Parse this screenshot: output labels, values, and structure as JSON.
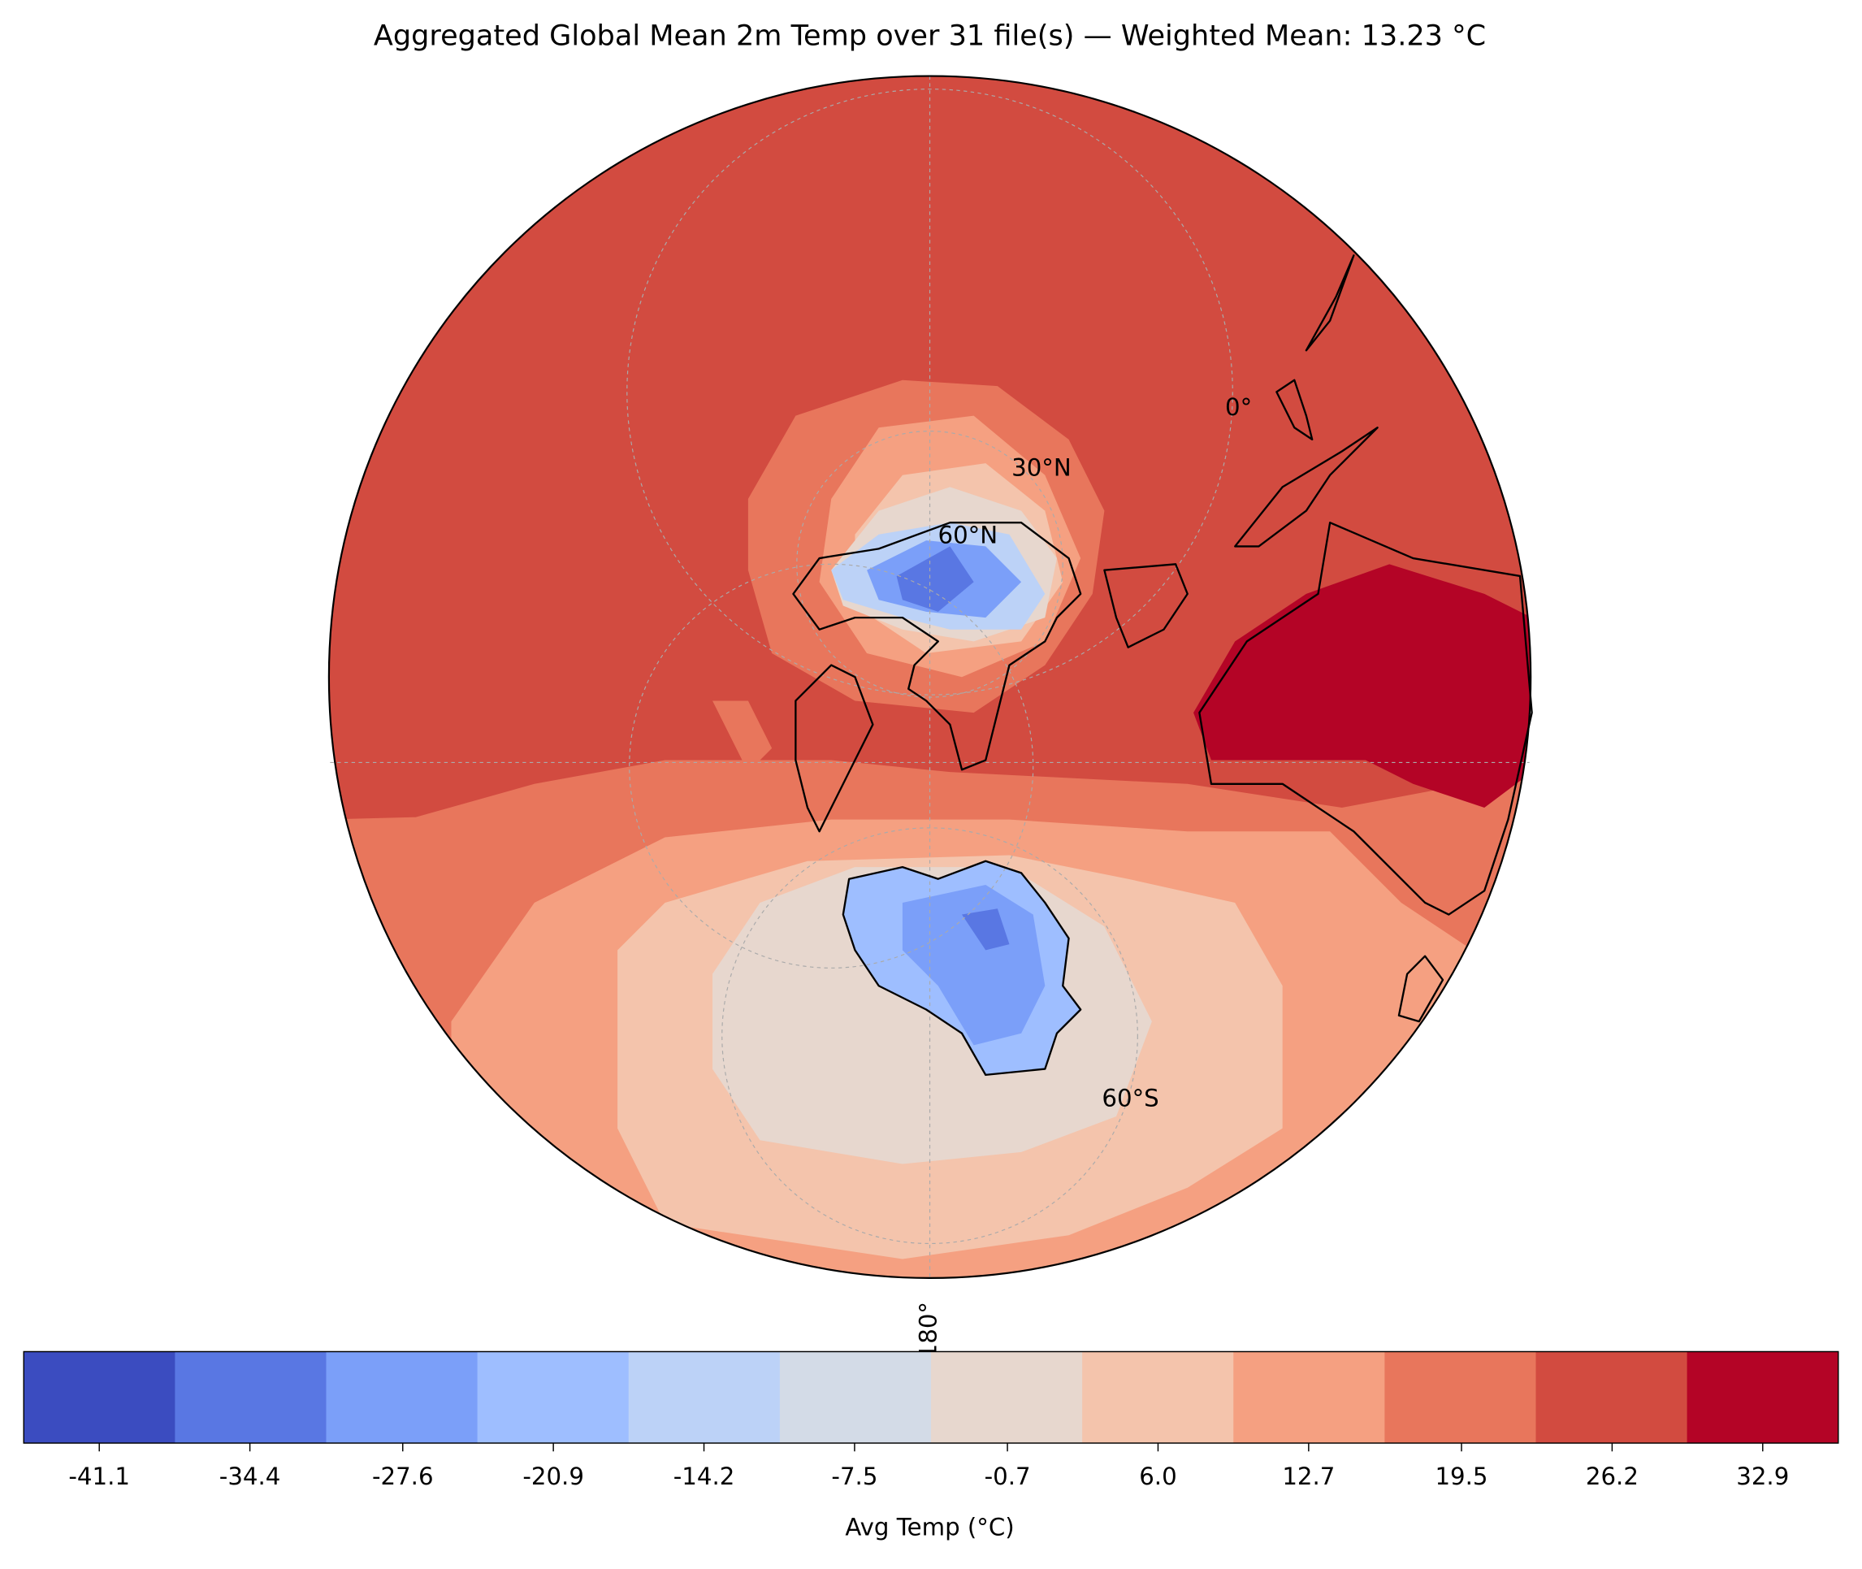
{
  "title": "Aggregated Global Mean 2m Temp over 31 file(s) — Weighted Mean: 13.23 °C",
  "map": {
    "labels": [
      "0°",
      "30°N",
      "60°N",
      "60°S",
      "180°"
    ]
  },
  "colorbar": {
    "label": "Avg Temp (°C)",
    "colors": [
      "#3b4cc0",
      "#5977e3",
      "#7b9ff9",
      "#9ebeff",
      "#bcd2f7",
      "#d3dbe7",
      "#e7d7ce",
      "#f4c4ac",
      "#f5a081",
      "#e8765c",
      "#d24b40",
      "#b40426"
    ],
    "xlim": [
      -44.46,
      36.26
    ],
    "xticks": [
      -41.1,
      -34.4,
      -27.6,
      -20.9,
      -14.2,
      -7.5,
      -0.7,
      {
        "value": 6,
        "label": "6.0"
      },
      12.7,
      19.5,
      26.2,
      32.9
    ]
  }
}
